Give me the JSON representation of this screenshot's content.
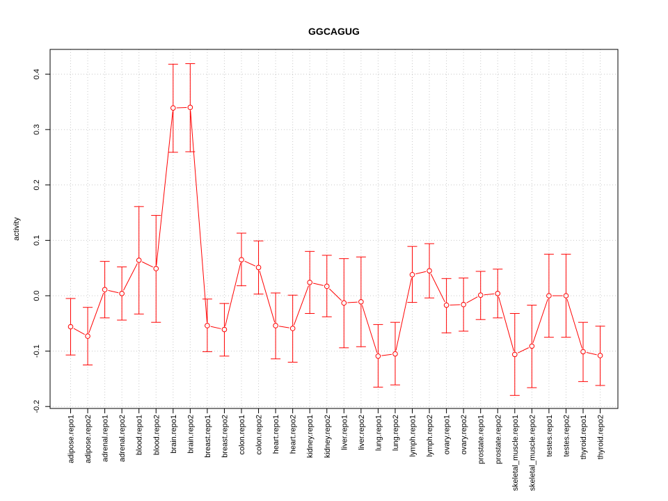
{
  "chart_data": {
    "type": "line",
    "title": "GGCAGUG",
    "xlabel": "",
    "ylabel": "activity",
    "ylim": [
      -0.2,
      0.42
    ],
    "yticks": [
      -0.2,
      -0.1,
      0.0,
      0.1,
      0.2,
      0.3,
      0.4
    ],
    "ytick_labels": [
      "-0.2",
      "-0.1",
      "0.0",
      "0.1",
      "0.2",
      "0.3",
      "0.4"
    ],
    "grid": true,
    "series_color": "#ff0000",
    "grid_color": "#c8c8c8",
    "categories": [
      "adipose.repo1",
      "adipose.repo2",
      "adrenal.repo1",
      "adrenal.repo2",
      "blood.repo1",
      "blood.repo2",
      "brain.repo1",
      "brain.repo2",
      "breast.repo1",
      "breast.repo2",
      "colon.repo1",
      "colon.repo2",
      "heart.repo1",
      "heart.repo2",
      "kidney.repo1",
      "kidney.repo2",
      "liver.repo1",
      "liver.repo2",
      "lung.repo1",
      "lung.repo2",
      "lymph.repo1",
      "lymph.repo2",
      "ovary.repo1",
      "ovary.repo2",
      "prostate.repo1",
      "prostate.repo2",
      "skeletal_muscle.repo1",
      "skeletal_muscle.repo2",
      "testes.repo1",
      "testes.repo2",
      "thyroid.repo1",
      "thyroid.repo2"
    ],
    "values": [
      -0.056,
      -0.073,
      0.011,
      0.004,
      0.064,
      0.049,
      0.339,
      0.34,
      -0.054,
      -0.061,
      0.065,
      0.051,
      -0.054,
      -0.059,
      0.024,
      0.017,
      -0.013,
      -0.011,
      -0.109,
      -0.105,
      0.038,
      0.045,
      -0.017,
      -0.016,
      0.001,
      0.004,
      -0.106,
      -0.091,
      0.0,
      0.0,
      -0.101,
      -0.108
    ],
    "error_lower": [
      -0.107,
      -0.125,
      -0.04,
      -0.044,
      -0.033,
      -0.048,
      0.259,
      0.26,
      -0.101,
      -0.109,
      0.018,
      0.003,
      -0.114,
      -0.12,
      -0.032,
      -0.038,
      -0.094,
      -0.092,
      -0.165,
      -0.161,
      -0.012,
      -0.004,
      -0.067,
      -0.064,
      -0.043,
      -0.04,
      -0.18,
      -0.166,
      -0.075,
      -0.075,
      -0.155,
      -0.162
    ],
    "error_upper": [
      -0.005,
      -0.021,
      0.062,
      0.052,
      0.161,
      0.145,
      0.418,
      0.419,
      -0.006,
      -0.014,
      0.113,
      0.099,
      0.005,
      0.001,
      0.08,
      0.073,
      0.067,
      0.07,
      -0.052,
      -0.048,
      0.089,
      0.094,
      0.031,
      0.032,
      0.044,
      0.048,
      -0.032,
      -0.017,
      0.075,
      0.075,
      -0.048,
      -0.055
    ]
  }
}
